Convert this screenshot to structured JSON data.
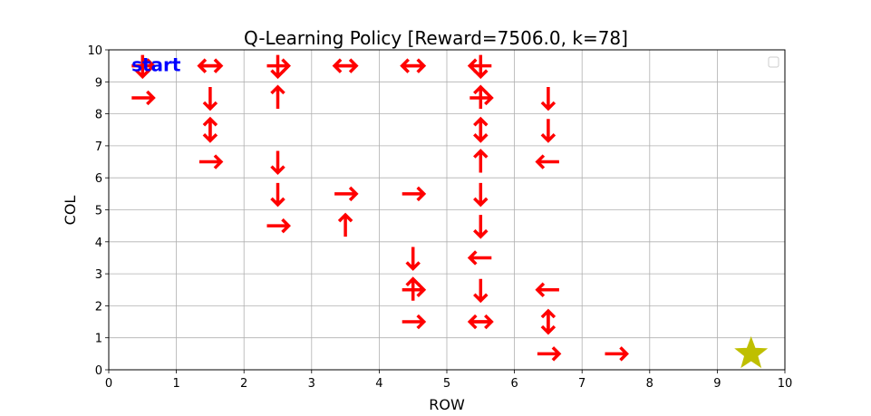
{
  "chart_data": {
    "type": "scatter",
    "title": "Q-Learning Policy [Reward=7506.0, k=78]",
    "xlabel": "ROW",
    "ylabel": "COL",
    "xlim": [
      0,
      10
    ],
    "ylim": [
      0,
      10
    ],
    "xticks": [
      "0",
      "1",
      "2",
      "3",
      "4",
      "5",
      "6",
      "7",
      "8",
      "9",
      "10"
    ],
    "yticks": [
      "0",
      "1",
      "2",
      "3",
      "4",
      "5",
      "6",
      "7",
      "8",
      "9",
      "10"
    ],
    "grid": true,
    "legend": {
      "placement": "top-right",
      "entries": []
    },
    "start": {
      "label": "start",
      "x": 0.5,
      "y": 9.5,
      "color": "#0000ff"
    },
    "goal": {
      "x": 9.5,
      "y": 0.5,
      "marker": "star",
      "color": "#bfbf00"
    },
    "arrow_color": "#ff0000",
    "arrows": [
      {
        "x": 0.5,
        "y": 9.5,
        "dirs": [
          "right",
          "down"
        ]
      },
      {
        "x": 0.5,
        "y": 8.5,
        "dirs": [
          "right"
        ]
      },
      {
        "x": 1.5,
        "y": 9.5,
        "dirs": [
          "left",
          "right"
        ]
      },
      {
        "x": 1.5,
        "y": 8.5,
        "dirs": [
          "down"
        ]
      },
      {
        "x": 1.5,
        "y": 7.5,
        "dirs": [
          "up",
          "down"
        ]
      },
      {
        "x": 1.5,
        "y": 6.5,
        "dirs": [
          "right"
        ]
      },
      {
        "x": 2.5,
        "y": 9.5,
        "dirs": [
          "right",
          "down"
        ]
      },
      {
        "x": 2.5,
        "y": 8.5,
        "dirs": [
          "up"
        ]
      },
      {
        "x": 2.5,
        "y": 6.5,
        "dirs": [
          "down"
        ]
      },
      {
        "x": 2.5,
        "y": 5.5,
        "dirs": [
          "down"
        ]
      },
      {
        "x": 2.5,
        "y": 4.5,
        "dirs": [
          "right"
        ]
      },
      {
        "x": 3.5,
        "y": 9.5,
        "dirs": [
          "left",
          "right"
        ]
      },
      {
        "x": 3.5,
        "y": 5.5,
        "dirs": [
          "right"
        ]
      },
      {
        "x": 3.5,
        "y": 4.5,
        "dirs": [
          "up"
        ]
      },
      {
        "x": 4.5,
        "y": 9.5,
        "dirs": [
          "left",
          "right"
        ]
      },
      {
        "x": 4.5,
        "y": 5.5,
        "dirs": [
          "right"
        ]
      },
      {
        "x": 4.5,
        "y": 3.5,
        "dirs": [
          "down"
        ]
      },
      {
        "x": 4.5,
        "y": 2.5,
        "dirs": [
          "right",
          "up"
        ]
      },
      {
        "x": 4.5,
        "y": 1.5,
        "dirs": [
          "right"
        ]
      },
      {
        "x": 5.5,
        "y": 9.5,
        "dirs": [
          "left",
          "down"
        ]
      },
      {
        "x": 5.5,
        "y": 8.5,
        "dirs": [
          "right",
          "up"
        ]
      },
      {
        "x": 5.5,
        "y": 7.5,
        "dirs": [
          "up",
          "down"
        ]
      },
      {
        "x": 5.5,
        "y": 6.5,
        "dirs": [
          "up"
        ]
      },
      {
        "x": 5.5,
        "y": 5.5,
        "dirs": [
          "down"
        ]
      },
      {
        "x": 5.5,
        "y": 4.5,
        "dirs": [
          "down"
        ]
      },
      {
        "x": 5.5,
        "y": 3.5,
        "dirs": [
          "left"
        ]
      },
      {
        "x": 5.5,
        "y": 2.5,
        "dirs": [
          "down"
        ]
      },
      {
        "x": 5.5,
        "y": 1.5,
        "dirs": [
          "left",
          "right"
        ]
      },
      {
        "x": 6.5,
        "y": 8.5,
        "dirs": [
          "down"
        ]
      },
      {
        "x": 6.5,
        "y": 7.5,
        "dirs": [
          "down"
        ]
      },
      {
        "x": 6.5,
        "y": 6.5,
        "dirs": [
          "left"
        ]
      },
      {
        "x": 6.5,
        "y": 2.5,
        "dirs": [
          "left"
        ]
      },
      {
        "x": 6.5,
        "y": 1.5,
        "dirs": [
          "up",
          "down"
        ]
      },
      {
        "x": 6.5,
        "y": 0.5,
        "dirs": [
          "right"
        ]
      },
      {
        "x": 7.5,
        "y": 0.5,
        "dirs": [
          "right"
        ]
      }
    ]
  }
}
